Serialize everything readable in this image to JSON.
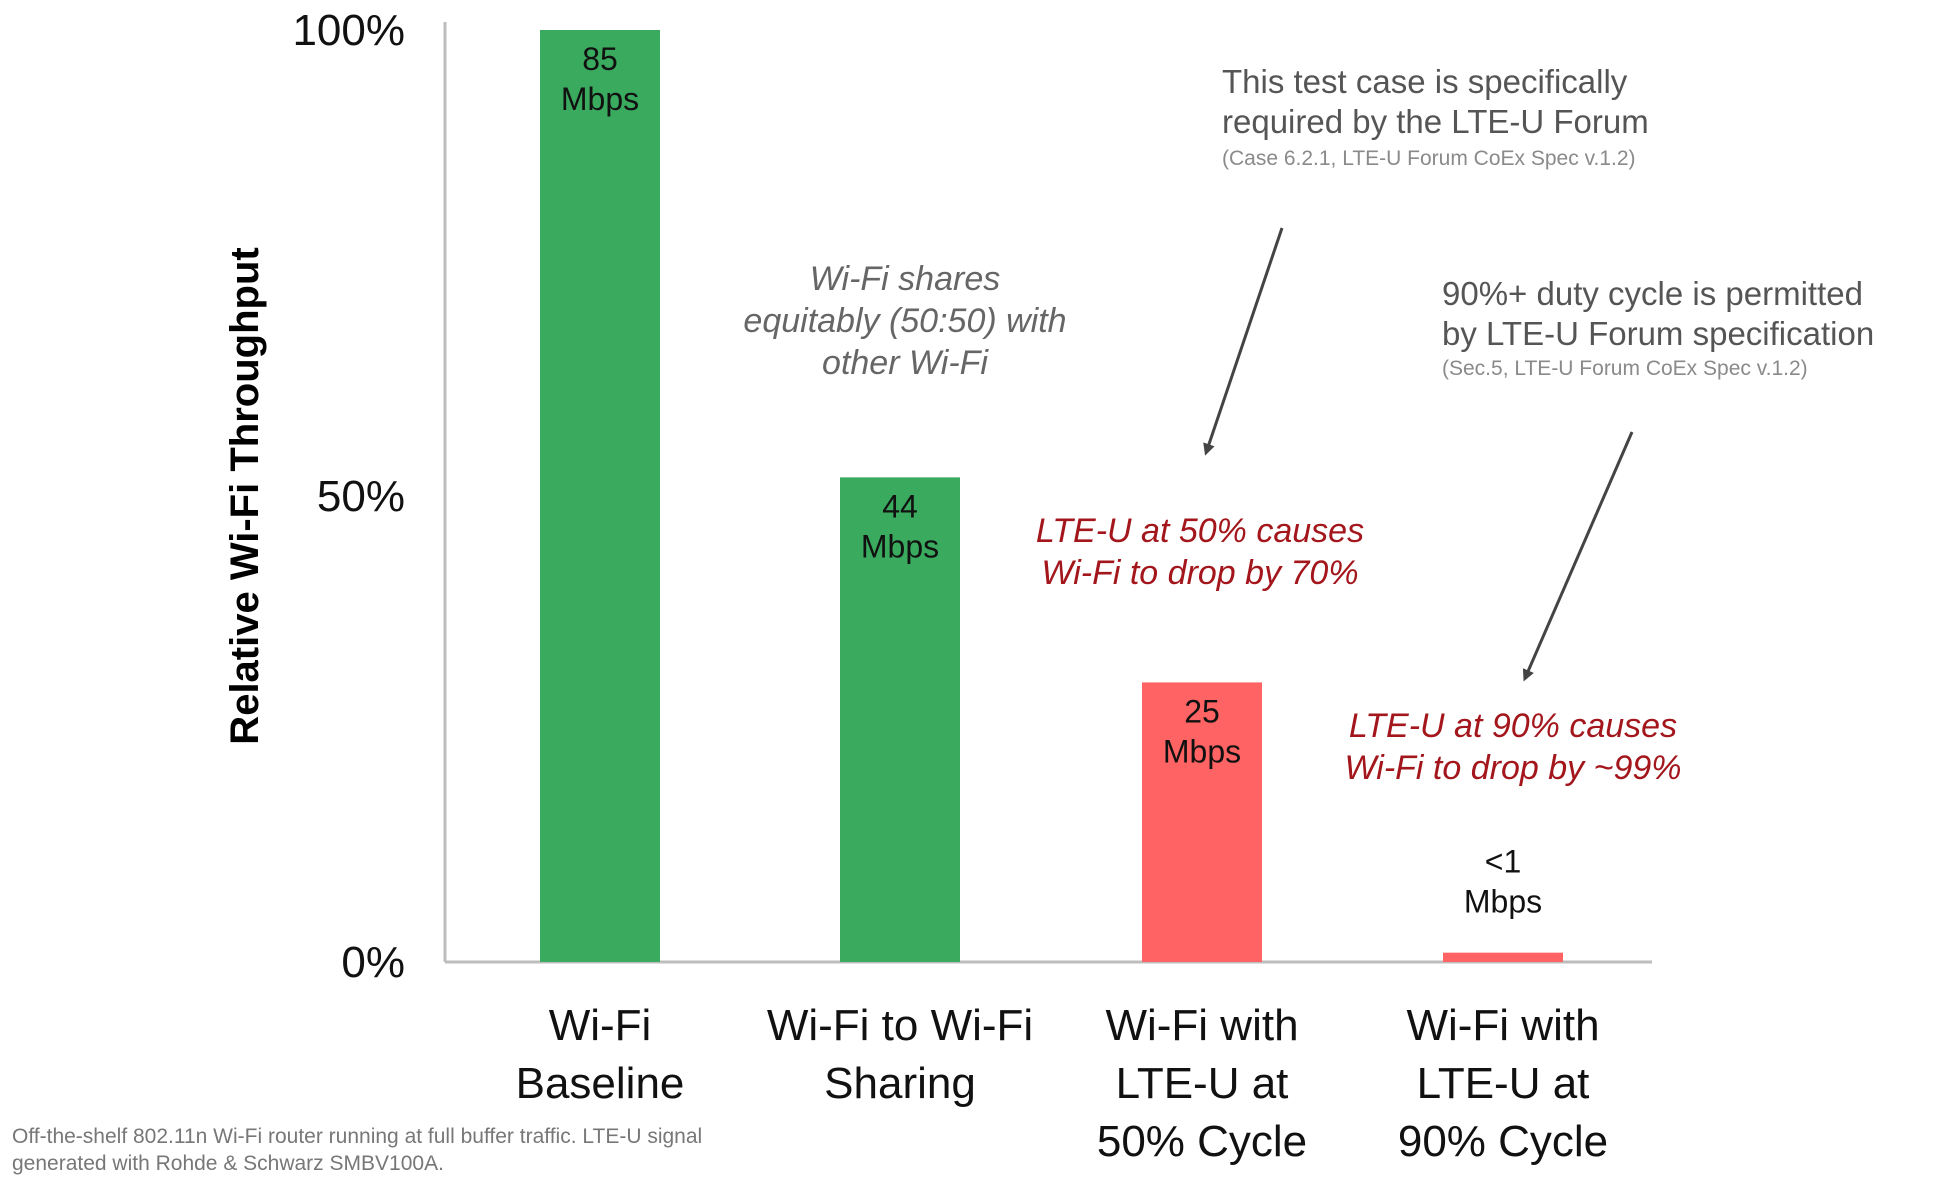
{
  "chart_data": {
    "type": "bar",
    "ylabel": "Relative Wi-Fi Throughput",
    "ylim": [
      0,
      100
    ],
    "yticks": [
      "100%",
      "50%",
      "0%"
    ],
    "yticks_values": [
      100,
      50,
      0
    ],
    "grid": false,
    "categories": [
      [
        "Wi-Fi",
        "Baseline"
      ],
      [
        "Wi-Fi to Wi-Fi",
        "Sharing"
      ],
      [
        "Wi-Fi with",
        "LTE-U at",
        "50% Cycle"
      ],
      [
        "Wi-Fi with",
        "LTE-U at",
        "90% Cycle"
      ]
    ],
    "values": [
      100,
      52,
      30,
      1
    ],
    "data_labels": [
      [
        "85",
        "Mbps"
      ],
      [
        "44",
        "Mbps"
      ],
      [
        "25",
        "Mbps"
      ],
      [
        "<1",
        "Mbps"
      ]
    ],
    "colors": [
      "#3aaa5e",
      "#3aaa5e",
      "#ff6363",
      "#ff6363"
    ],
    "annotations": {
      "forum_case": {
        "lines": [
          "This test case is specifically",
          "required by the LTE-U Forum"
        ],
        "source": "(Case 6.2.1, LTE-U Forum CoEx Spec v.1.2)"
      },
      "duty_cycle": {
        "lines": [
          "90%+ duty cycle is permitted",
          "by LTE-U Forum specification"
        ],
        "source": "(Sec.5, LTE-U Forum CoEx Spec v.1.2)"
      },
      "sharing": [
        "Wi-Fi shares",
        "equitably (50:50) with",
        "other Wi-Fi"
      ],
      "drop_50": [
        "LTE-U at 50% causes",
        "Wi-Fi to drop by 70%"
      ],
      "drop_90": [
        "LTE-U at 90% causes",
        "Wi-Fi to drop by ~99%"
      ]
    },
    "footnote": [
      "Off-the-shelf 802.11n Wi-Fi router running at full buffer traffic. LTE-U signal",
      "generated with Rohde & Schwarz SMBV100A."
    ]
  }
}
